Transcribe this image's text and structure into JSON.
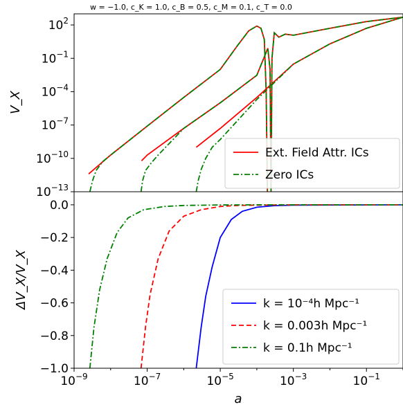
{
  "chart_data": [
    {
      "type": "line",
      "title": "w = −1.0, c_K = 1.0, c_B = 0.5, c_M = 0.1, c_T = 0.0",
      "xlabel": "",
      "ylabel": "V_X",
      "xscale": "log",
      "yscale": "log",
      "xlim": [
        1e-09,
        1.0
      ],
      "ylim": [
        1e-13,
        1000.0
      ],
      "yticks": [
        {
          "base": "10",
          "exp": "2"
        },
        {
          "base": "10",
          "exp": "−1"
        },
        {
          "base": "10",
          "exp": "−4"
        },
        {
          "base": "10",
          "exp": "−7"
        },
        {
          "base": "10",
          "exp": "−10"
        },
        {
          "base": "10",
          "exp": "−13"
        }
      ],
      "legend": {
        "placement": "lower-right",
        "entries": [
          "Ext. Field Attr. ICs",
          "Zero ICs"
        ]
      },
      "series": [
        {
          "name": "Ext. Field Attr. ICs",
          "color": "#ff0000",
          "style": "solid",
          "k_mode": "k=0.1",
          "x": [
            2.5e-09,
            1e-08,
            1e-07,
            1e-06,
            1e-05,
            3e-05,
            6e-05,
            0.0001,
            0.00013,
            0.00016,
            0.00018,
            0.00019,
            0.000195
          ],
          "y": [
            4e-12,
            2e-10,
            8e-08,
            3e-05,
            0.01,
            1.5,
            30,
            80,
            50,
            5,
            0.0001,
            1e-10,
            1e-13
          ]
        },
        {
          "name": "Ext. Field Attr. ICs",
          "color": "#ff0000",
          "style": "solid",
          "k_mode": "k=0.003",
          "x": [
            7e-08,
            1e-07,
            1e-06,
            1e-05,
            0.0001,
            0.0002,
            0.00023,
            0.000245,
            0.00026,
            0.0003,
            0.0004,
            0.0006,
            0.001,
            0.01,
            0.1,
            1.0
          ],
          "y": [
            6e-11,
            2e-10,
            5e-08,
            1e-05,
            0.003,
            0.8,
            0.01,
            1e-13,
            0.1,
            20,
            8,
            15,
            12,
            50,
            200,
            500
          ]
        },
        {
          "name": "Ext. Field Attr. ICs",
          "color": "#ff0000",
          "style": "solid",
          "k_mode": "k=1e-4",
          "x": [
            2.2e-06,
            1e-05,
            0.0001,
            0.001,
            0.01,
            0.1,
            1.0
          ],
          "y": [
            1e-09,
            5e-08,
            3e-05,
            0.03,
            2,
            50,
            500
          ]
        },
        {
          "name": "Zero ICs",
          "color": "#008000",
          "style": "dashdot",
          "k_mode": "k=0.1",
          "x": [
            2.7e-09,
            3.2e-09,
            4e-09,
            6e-09,
            1e-08,
            1e-07,
            1e-06,
            1e-05,
            3e-05,
            6e-05,
            0.0001,
            0.00013,
            0.00016,
            0.00018,
            0.00019,
            0.000195
          ],
          "y": [
            1e-13,
            1e-12,
            8e-12,
            5e-11,
            2e-10,
            8e-08,
            3e-05,
            0.01,
            1.5,
            30,
            80,
            50,
            5,
            0.0001,
            1e-10,
            1e-13
          ]
        },
        {
          "name": "Zero ICs",
          "color": "#008000",
          "style": "dashdot",
          "k_mode": "k=0.003",
          "x": [
            6.8e-08,
            7.5e-08,
            9e-08,
            1.3e-07,
            2e-07,
            1e-06,
            1e-05,
            0.0001,
            0.0002,
            0.00023,
            0.000245,
            0.00026,
            0.0003,
            0.0004,
            0.0006,
            0.001,
            0.01,
            0.1,
            1.0
          ],
          "y": [
            1e-13,
            1e-12,
            8e-12,
            4e-11,
            2e-10,
            5e-08,
            1e-05,
            0.003,
            0.8,
            0.01,
            1e-13,
            0.1,
            20,
            8,
            15,
            12,
            50,
            200,
            500
          ]
        },
        {
          "name": "Zero ICs",
          "color": "#008000",
          "style": "dashdot",
          "k_mode": "k=1e-4",
          "x": [
            2.2e-06,
            2.5e-06,
            3e-06,
            4e-06,
            6e-06,
            1e-05,
            0.0001,
            0.001,
            0.01,
            0.1,
            1.0
          ],
          "y": [
            1e-13,
            1e-12,
            1e-11,
            1e-10,
            1e-09,
            5e-09,
            2e-05,
            0.03,
            2,
            50,
            500
          ]
        }
      ]
    },
    {
      "type": "line",
      "xlabel": "a",
      "ylabel": "ΔV_X/V_X",
      "xscale": "log",
      "yscale": "linear",
      "xlim": [
        1e-09,
        1.0
      ],
      "ylim": [
        -1.0,
        0.08
      ],
      "xticks": [
        {
          "base": "10",
          "exp": "−9"
        },
        {
          "base": "10",
          "exp": "−7"
        },
        {
          "base": "10",
          "exp": "−5"
        },
        {
          "base": "10",
          "exp": "−3"
        },
        {
          "base": "10",
          "exp": "−1"
        }
      ],
      "yticks": [
        "0.0",
        "−0.2",
        "−0.4",
        "−0.6",
        "−0.8",
        "−1.0"
      ],
      "legend": {
        "placement": "lower-right",
        "entries": [
          "k = 10⁻⁴h Mpc⁻¹",
          "k = 0.003h Mpc⁻¹",
          "k = 0.1h Mpc⁻¹"
        ]
      },
      "series": [
        {
          "name": "k = 10⁻⁴h Mpc⁻¹",
          "color": "#0000ff",
          "style": "solid",
          "x": [
            2.2e-06,
            3e-06,
            4e-06,
            6e-06,
            1e-05,
            2e-05,
            4e-05,
            0.0001,
            0.0003,
            0.001,
            1.0
          ],
          "y": [
            -1.0,
            -0.75,
            -0.56,
            -0.38,
            -0.2,
            -0.09,
            -0.04,
            -0.015,
            -0.005,
            -0.002,
            0.0
          ]
        },
        {
          "name": "k = 0.003h Mpc⁻¹",
          "color": "#ff0000",
          "style": "dashed",
          "x": [
            6.8e-08,
            9e-08,
            1.2e-07,
            2e-07,
            4e-07,
            1e-06,
            3e-06,
            1e-05,
            3e-05,
            0.0001,
            0.001,
            1.0
          ],
          "y": [
            -1.0,
            -0.75,
            -0.55,
            -0.33,
            -0.16,
            -0.07,
            -0.03,
            -0.01,
            -0.004,
            -0.002,
            0.0,
            0.0
          ]
        },
        {
          "name": "k = 0.1h Mpc⁻¹",
          "color": "#008000",
          "style": "dashdot",
          "x": [
            2.7e-09,
            3.5e-09,
            5e-09,
            8e-09,
            1.5e-08,
            3e-08,
            8e-08,
            3e-07,
            1e-06,
            1e-05,
            0.0001,
            0.001,
            1.0
          ],
          "y": [
            -1.0,
            -0.75,
            -0.52,
            -0.33,
            -0.17,
            -0.08,
            -0.03,
            -0.01,
            -0.004,
            -0.001,
            0.0,
            0.0,
            0.0
          ]
        }
      ]
    }
  ]
}
